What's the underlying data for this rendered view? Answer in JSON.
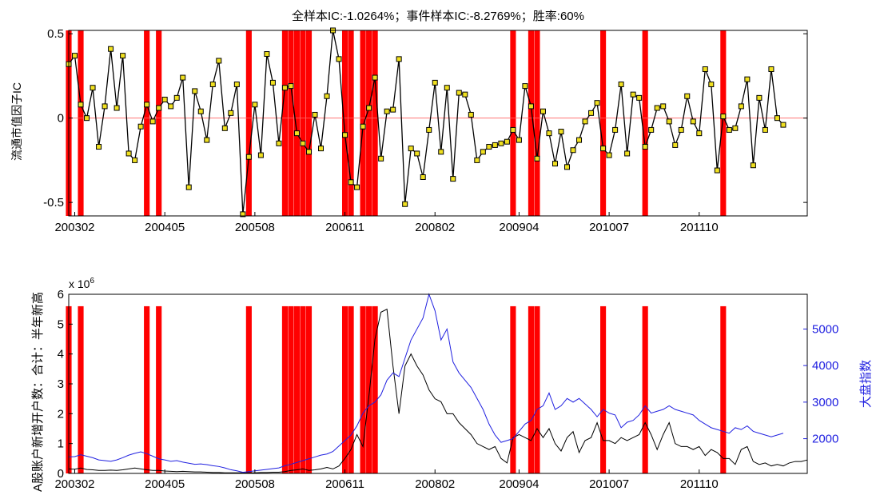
{
  "chart_data": [
    {
      "type": "line",
      "title": "全样本IC:-1.0264%；事件样本IC:-8.2769%；胜率:60%",
      "xlabel": "",
      "ylabel": "流通市值因子IC",
      "x_tick_labels": [
        "200302",
        "200405",
        "200508",
        "200611",
        "200802",
        "200904",
        "201007",
        "201110"
      ],
      "x_tick_months": [
        "2003-02",
        "2004-05",
        "2005-08",
        "2006-11",
        "2008-02",
        "2009-04",
        "2010-07",
        "2011-10"
      ],
      "start_month": "2003-01",
      "end_month": "2013-04",
      "ylim": [
        -0.58,
        0.52
      ],
      "yticks": [
        0.5,
        0,
        -0.5
      ],
      "ytick_labels": [
        "0.5",
        "0",
        "-0.5"
      ],
      "series": [
        {
          "name": "",
          "values": [
            0.32,
            0.37,
            0.08,
            0.0,
            0.18,
            -0.17,
            0.07,
            0.41,
            0.06,
            0.37,
            -0.21,
            -0.25,
            -0.05,
            0.08,
            -0.02,
            0.06,
            0.11,
            0.07,
            0.12,
            0.24,
            -0.41,
            0.16,
            0.04,
            -0.13,
            0.2,
            0.34,
            -0.06,
            0.03,
            0.2,
            -0.57,
            -0.23,
            0.08,
            -0.22,
            0.38,
            0.21,
            -0.15,
            0.18,
            0.19,
            -0.09,
            -0.15,
            -0.2,
            0.02,
            -0.18,
            0.13,
            0.52,
            0.35,
            -0.1,
            -0.38,
            -0.41,
            -0.05,
            0.06,
            0.24,
            -0.24,
            0.04,
            0.05,
            0.35,
            -0.51,
            -0.18,
            -0.21,
            -0.35,
            -0.07,
            0.21,
            -0.2,
            0.18,
            -0.36,
            0.15,
            0.14,
            0.02,
            -0.25,
            -0.2,
            -0.17,
            -0.16,
            -0.15,
            -0.14,
            -0.07,
            -0.13,
            0.19,
            0.07,
            -0.24,
            0.04,
            -0.09,
            -0.27,
            -0.08,
            -0.29,
            -0.19,
            -0.13,
            -0.02,
            0.03,
            0.09,
            -0.18,
            -0.22,
            -0.07,
            0.2,
            -0.21,
            0.14,
            0.12,
            -0.17,
            -0.07,
            0.06,
            0.07,
            -0.02,
            -0.16,
            -0.07,
            0.13,
            -0.02,
            -0.09,
            0.29,
            0.2,
            -0.31,
            0.01,
            -0.07,
            -0.06,
            0.07,
            0.23,
            -0.28,
            0.12,
            -0.07,
            0.29,
            0.0,
            -0.04
          ]
        }
      ],
      "reference_lines": [
        {
          "y": 0,
          "color": "#ff0000"
        }
      ],
      "event_months": [
        "2003-01",
        "2003-03",
        "2004-02",
        "2004-04",
        "2005-07",
        "2006-01",
        "2006-02",
        "2006-03",
        "2006-04",
        "2006-05",
        "2006-11",
        "2006-12",
        "2007-02",
        "2007-03",
        "2007-04",
        "2009-03",
        "2009-06",
        "2009-07",
        "2010-06",
        "2011-01",
        "2012-02"
      ],
      "colors": {
        "line": "#000000",
        "marker_fill": "#f0e020",
        "event_bar": "#ff0000",
        "zero_line": "#ff6060"
      },
      "grid": false
    },
    {
      "type": "line",
      "title": "",
      "x_tick_labels": [
        "200302",
        "200405",
        "200508",
        "200611",
        "200802",
        "200904",
        "201007",
        "201110"
      ],
      "x_tick_months": [
        "2003-02",
        "2004-05",
        "2005-08",
        "2006-11",
        "2008-02",
        "2009-04",
        "2010-07",
        "2011-10"
      ],
      "start_month": "2003-01",
      "end_month": "2013-04",
      "left_axis": {
        "label": "A股账户新增开户数：合计：半年新高",
        "exponent_label": "x 10",
        "exponent_power": "6",
        "ylim": [
          0,
          6
        ],
        "ticks": [
          0,
          1,
          2,
          3,
          4,
          5,
          6
        ],
        "tick_labels": [
          "0",
          "1",
          "2",
          "3",
          "4",
          "5",
          "6"
        ]
      },
      "right_axis": {
        "label": "大盘指数",
        "ylim": [
          1050,
          5950
        ],
        "ticks": [
          2000,
          3000,
          4000,
          5000
        ],
        "tick_labels": [
          "2000",
          "3000",
          "4000",
          "5000"
        ]
      },
      "series": [
        {
          "name": "",
          "axis": "left",
          "color": "#000000",
          "values": [
            0.15,
            0.14,
            0.18,
            0.13,
            0.12,
            0.1,
            0.1,
            0.11,
            0.1,
            0.12,
            0.15,
            0.18,
            0.15,
            0.12,
            0.1,
            0.1,
            0.08,
            0.07,
            0.06,
            0.07,
            0.06,
            0.05,
            0.05,
            0.04,
            0.03,
            0.03,
            0.02,
            0.02,
            0.02,
            0.02,
            0.02,
            0.02,
            0.03,
            0.03,
            0.04,
            0.04,
            0.06,
            0.1,
            0.12,
            0.15,
            0.1,
            0.12,
            0.15,
            0.2,
            0.15,
            0.25,
            0.5,
            0.8,
            1.3,
            0.9,
            2.6,
            4.5,
            5.4,
            5.5,
            3.6,
            2.0,
            3.6,
            4.0,
            3.6,
            3.3,
            2.8,
            2.5,
            2.4,
            2.0,
            2.0,
            1.7,
            1.5,
            1.3,
            1.0,
            0.9,
            0.8,
            0.9,
            0.5,
            0.35,
            1.2,
            1.3,
            1.2,
            1.1,
            1.5,
            1.2,
            1.5,
            1.0,
            0.75,
            1.2,
            1.4,
            0.7,
            1.1,
            1.2,
            1.7,
            1.1,
            1.1,
            1.0,
            1.2,
            1.1,
            1.2,
            1.3,
            1.7,
            1.3,
            0.8,
            1.3,
            1.7,
            1.0,
            0.9,
            0.9,
            0.8,
            0.9,
            0.6,
            0.8,
            0.7,
            0.5,
            0.5,
            0.3,
            0.8,
            0.9,
            0.4,
            0.3,
            0.35,
            0.25,
            0.3,
            0.25,
            0.35,
            0.4,
            0.4,
            0.45
          ]
        },
        {
          "name": "",
          "axis": "right",
          "color": "#2020e0",
          "values": [
            1500,
            1510,
            1560,
            1520,
            1480,
            1420,
            1400,
            1380,
            1420,
            1480,
            1550,
            1600,
            1640,
            1590,
            1520,
            1450,
            1420,
            1380,
            1400,
            1360,
            1330,
            1300,
            1310,
            1290,
            1260,
            1240,
            1200,
            1150,
            1120,
            1080,
            1100,
            1120,
            1140,
            1160,
            1180,
            1200,
            1260,
            1300,
            1350,
            1400,
            1450,
            1500,
            1550,
            1580,
            1650,
            1800,
            1950,
            2100,
            2350,
            2700,
            2900,
            3000,
            3200,
            3600,
            3800,
            3700,
            4200,
            4700,
            5000,
            5300,
            5950,
            5500,
            4700,
            5000,
            4100,
            3800,
            3600,
            3400,
            3100,
            2800,
            2400,
            2100,
            1900,
            1950,
            2000,
            2200,
            2400,
            2500,
            2800,
            2900,
            3250,
            2800,
            2900,
            3100,
            3000,
            3100,
            2950,
            2800,
            2600,
            2800,
            2700,
            2650,
            2300,
            2450,
            2500,
            2650,
            2900,
            2700,
            2750,
            2800,
            2900,
            2800,
            2750,
            2700,
            2650,
            2500,
            2400,
            2300,
            2250,
            2200,
            2150,
            2300,
            2250,
            2350,
            2200,
            2150,
            2100,
            2050,
            2100,
            2150
          ]
        }
      ],
      "event_months": [
        "2003-01",
        "2003-03",
        "2004-02",
        "2004-04",
        "2005-07",
        "2006-01",
        "2006-02",
        "2006-03",
        "2006-04",
        "2006-05",
        "2006-11",
        "2006-12",
        "2007-02",
        "2007-03",
        "2007-04",
        "2009-03",
        "2009-06",
        "2009-07",
        "2010-06",
        "2011-01",
        "2012-02"
      ],
      "event_bar_top": 5.6,
      "colors": {
        "left_series": "#000000",
        "right_series": "#2020e0",
        "right_axis": "#2020e0",
        "event_bar": "#ff0000"
      },
      "grid": false
    }
  ]
}
